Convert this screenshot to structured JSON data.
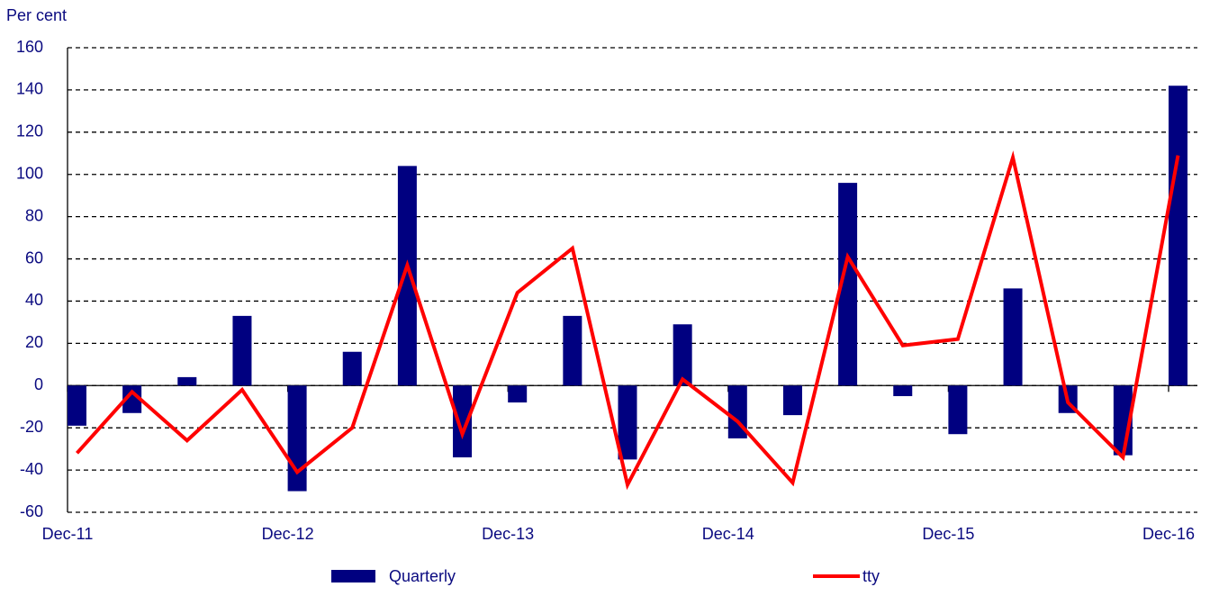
{
  "chart_data": {
    "type": "bar+line",
    "y_label": "Per cent",
    "categories": [
      "Dec-11",
      null,
      null,
      null,
      "Dec-12",
      null,
      null,
      null,
      "Dec-13",
      null,
      null,
      null,
      "Dec-14",
      null,
      null,
      null,
      "Dec-15",
      null,
      null,
      null,
      "Dec-16"
    ],
    "series": [
      {
        "name": "Quarterly",
        "type": "bar",
        "color": "#000080",
        "values": [
          -19,
          -13,
          4,
          33,
          -50,
          16,
          104,
          -34,
          -8,
          33,
          -35,
          29,
          -25,
          -14,
          96,
          -5,
          -23,
          46,
          -13,
          -33,
          142
        ]
      },
      {
        "name": "tty",
        "type": "line",
        "color": "#ff0000",
        "values": [
          -32,
          -3,
          -26,
          -2,
          -41,
          -20,
          57,
          -23,
          44,
          65,
          -47,
          3,
          -17,
          -46,
          61,
          19,
          22,
          108,
          -8,
          -34,
          109
        ]
      }
    ],
    "ylim": [
      -60,
      160
    ],
    "yticks": [
      -60,
      -40,
      -20,
      0,
      20,
      40,
      60,
      80,
      100,
      120,
      140,
      160
    ],
    "grid": true,
    "legend": "bottom"
  }
}
